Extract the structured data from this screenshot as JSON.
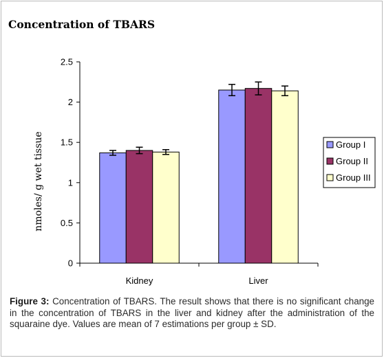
{
  "header": {
    "title": "Concentration of TBARS"
  },
  "caption": {
    "label": "Figure 3:",
    "text": "Concentration of TBARS. The result shows that there is no significant change in the concentration of TBARS in the liver and kidney after the administration of the squaraine dye. Values are mean of 7 estimations per group ± SD."
  },
  "chart_data": {
    "type": "bar",
    "title": "Concentration of TBARS",
    "xlabel": "",
    "ylabel": "nmoles/ g wet tissue",
    "categories": [
      "Kidney",
      "Liver"
    ],
    "series": [
      {
        "name": "Group I",
        "values": [
          1.37,
          2.15
        ],
        "errors": [
          0.03,
          0.07
        ],
        "color": "#9999ff"
      },
      {
        "name": "Group II",
        "values": [
          1.4,
          2.17
        ],
        "errors": [
          0.04,
          0.08
        ],
        "color": "#993366"
      },
      {
        "name": "Group III",
        "values": [
          1.38,
          2.14
        ],
        "errors": [
          0.03,
          0.06
        ],
        "color": "#ffffcc"
      }
    ],
    "ylim": [
      0,
      2.5
    ],
    "yticks": [
      0,
      0.5,
      1,
      1.5,
      2,
      2.5
    ],
    "ytick_labels": [
      "0",
      "0.5",
      "1",
      "1.5",
      "2",
      "2.5"
    ],
    "grid": false,
    "legend_position": "right"
  }
}
